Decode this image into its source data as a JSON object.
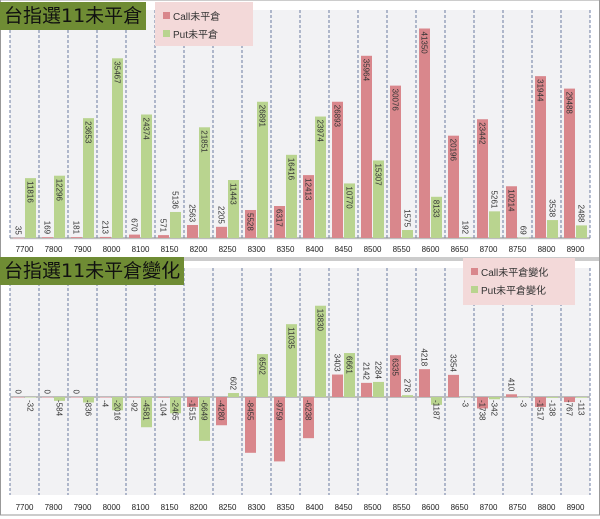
{
  "colors": {
    "call": "#d9878c",
    "put": "#b9d48f",
    "title_bg": "#6f8c34",
    "legend_bg": "#f3d9d9"
  },
  "chart_data": [
    {
      "type": "bar",
      "title": "台指選11未平倉",
      "categories": [
        "7700",
        "7800",
        "7900",
        "8000",
        "8100",
        "8150",
        "8200",
        "8250",
        "8300",
        "8350",
        "8400",
        "8450",
        "8500",
        "8550",
        "8600",
        "8650",
        "8700",
        "8750",
        "8800",
        "8900"
      ],
      "series": [
        {
          "name": "Call未平倉",
          "values": [
            35,
            169,
            181,
            213,
            670,
            571,
            2563,
            2205,
            5528,
            6317,
            12413,
            26893,
            35964,
            30076,
            41350,
            20196,
            23442,
            10214,
            31944,
            29488
          ]
        },
        {
          "name": "Put未平倉",
          "values": [
            11816,
            12296,
            23653,
            35467,
            24374,
            5136,
            21851,
            11443,
            26891,
            16416,
            23974,
            10770,
            15307,
            1575,
            8133,
            192,
            5261,
            69,
            3538,
            2488
          ]
        }
      ],
      "ylim": [
        0,
        45000
      ],
      "legend": "top-center"
    },
    {
      "type": "bar",
      "title": "台指選11未平倉變化",
      "categories": [
        "7700",
        "7800",
        "7900",
        "8000",
        "8100",
        "8150",
        "8200",
        "8250",
        "8300",
        "8350",
        "8400",
        "8450",
        "8500",
        "8550",
        "8600",
        "8650",
        "8700",
        "8750",
        "8800",
        "8900"
      ],
      "series": [
        {
          "name": "Call未平倉變化",
          "values": [
            0,
            0,
            0,
            -4,
            -92,
            -104,
            -1515,
            -4280,
            -8455,
            -9759,
            -6238,
            3403,
            2142,
            6335,
            4218,
            3354,
            -1738,
            410,
            -1517,
            -767
          ]
        },
        {
          "name": "Put未平倉變化",
          "values": [
            -32,
            -584,
            -836,
            -2016,
            -4581,
            -2465,
            -6649,
            602,
            6502,
            11035,
            13830,
            6661,
            2284,
            278,
            -1187,
            -3,
            -342,
            -3,
            -138,
            -113
          ]
        }
      ],
      "ylim": [
        -16000,
        14000
      ],
      "legend": "top-right"
    }
  ]
}
